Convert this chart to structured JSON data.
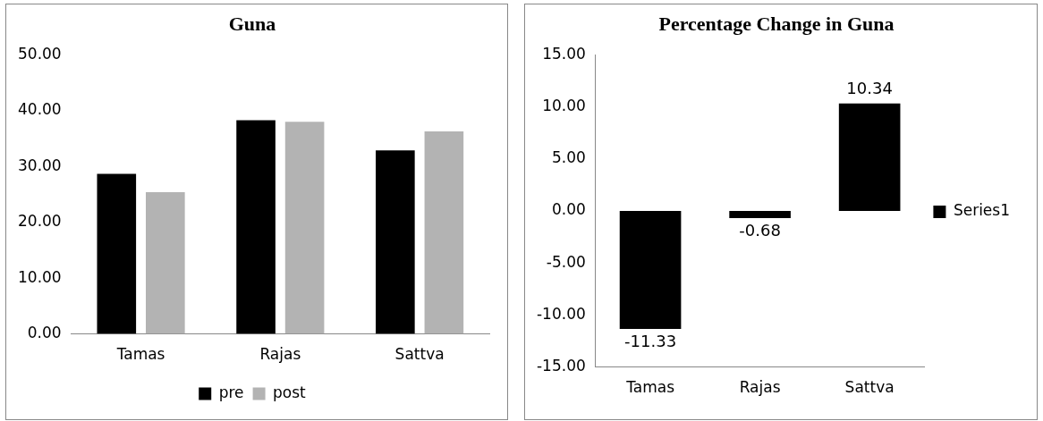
{
  "chart_data": [
    {
      "type": "bar",
      "title": "Guna",
      "categories": [
        "Tamas",
        "Rajas",
        "Sattva"
      ],
      "series": [
        {
          "name": "pre",
          "color": "#000000",
          "values": [
            28.7,
            38.3,
            32.9
          ]
        },
        {
          "name": "post",
          "color": "#b3b3b3",
          "values": [
            25.4,
            38.0,
            36.3
          ]
        }
      ],
      "ylim": [
        0,
        50
      ],
      "yticks": [
        {
          "value": 0,
          "label": "0.00"
        },
        {
          "value": 10,
          "label": "10.00"
        },
        {
          "value": 20,
          "label": "20.00"
        },
        {
          "value": 30,
          "label": "30.00"
        },
        {
          "value": 40,
          "label": "40.00"
        },
        {
          "value": 50,
          "label": "50.00"
        }
      ],
      "grid": false,
      "legend": "bottom"
    },
    {
      "type": "bar",
      "title": "Percentage Change in Guna",
      "categories": [
        "Tamas",
        "Rajas",
        "Sattva"
      ],
      "series": [
        {
          "name": "Series1",
          "color": "#000000",
          "values": [
            -11.33,
            -0.68,
            10.34
          ]
        }
      ],
      "ylim": [
        -15,
        15
      ],
      "yticks": [
        {
          "value": -15,
          "label": "-15.00"
        },
        {
          "value": -10,
          "label": "-10.00"
        },
        {
          "value": -5,
          "label": "-5.00"
        },
        {
          "value": 0,
          "label": "0.00"
        },
        {
          "value": 5,
          "label": "5.00"
        },
        {
          "value": 10,
          "label": "10.00"
        },
        {
          "value": 15,
          "label": "15.00"
        }
      ],
      "grid": false,
      "legend": "right",
      "data_labels": true
    }
  ]
}
